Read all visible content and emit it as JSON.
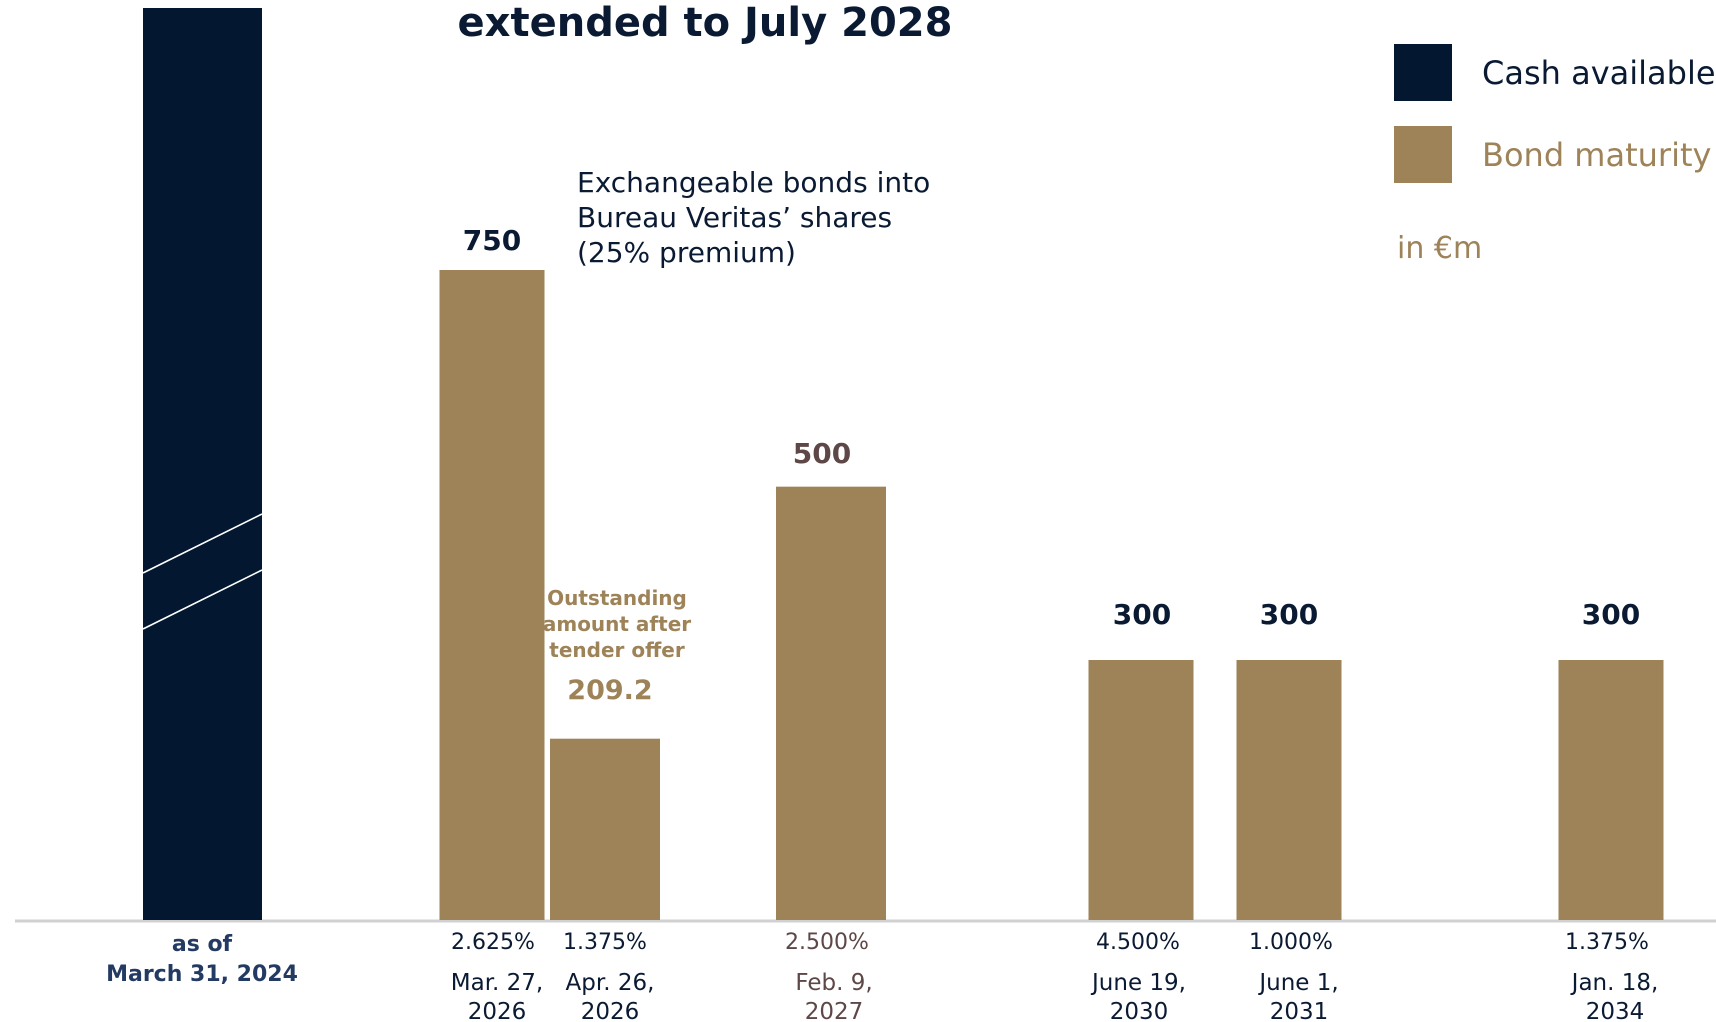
{
  "colors": {
    "cash": "#031731",
    "bond": "#9e8359",
    "baseline": "#d0d0d0",
    "dark_text": "#0a1a33",
    "muted_text": "#5e4747"
  },
  "title": "extended to July 2028",
  "legend": [
    {
      "name": "Cash available",
      "color": "#031731"
    },
    {
      "name": "Bond maturity",
      "color": "#9e8359"
    }
  ],
  "unit_label": "in €m",
  "note": {
    "lines": [
      "Exchangeable bonds into",
      "Bureau Veritas’ shares",
      "(25% premium)"
    ]
  },
  "tender_note": {
    "lines": [
      "Outstanding",
      "amount after",
      "tender offer"
    ]
  },
  "chart_data": {
    "type": "bar",
    "ylabel": "",
    "unit": "in €m",
    "cash": {
      "name": "Cash available",
      "label_lines": [
        "as of",
        "March 31, 2024"
      ],
      "axis_break": true
    },
    "bonds": [
      {
        "rate": "2.625%",
        "date_lines": [
          "Mar. 27,",
          "2026"
        ],
        "value": 750,
        "value_label": "750"
      },
      {
        "rate": "1.375%",
        "date_lines": [
          "Apr. 26,",
          "2026"
        ],
        "value": 209.2,
        "value_label": "209.2"
      },
      {
        "rate": "2.500%",
        "date_lines": [
          "Feb. 9,",
          "2027"
        ],
        "value": 500,
        "value_label": "500"
      },
      {
        "rate": "4.500%",
        "date_lines": [
          "June 19,",
          "2030"
        ],
        "value": 300,
        "value_label": "300"
      },
      {
        "rate": "1.000%",
        "date_lines": [
          "June 1,",
          "2031"
        ],
        "value": 300,
        "value_label": "300"
      },
      {
        "rate": "1.375%",
        "date_lines": [
          "Jan. 18,",
          "2034"
        ],
        "value": 300,
        "value_label": "300"
      }
    ]
  }
}
